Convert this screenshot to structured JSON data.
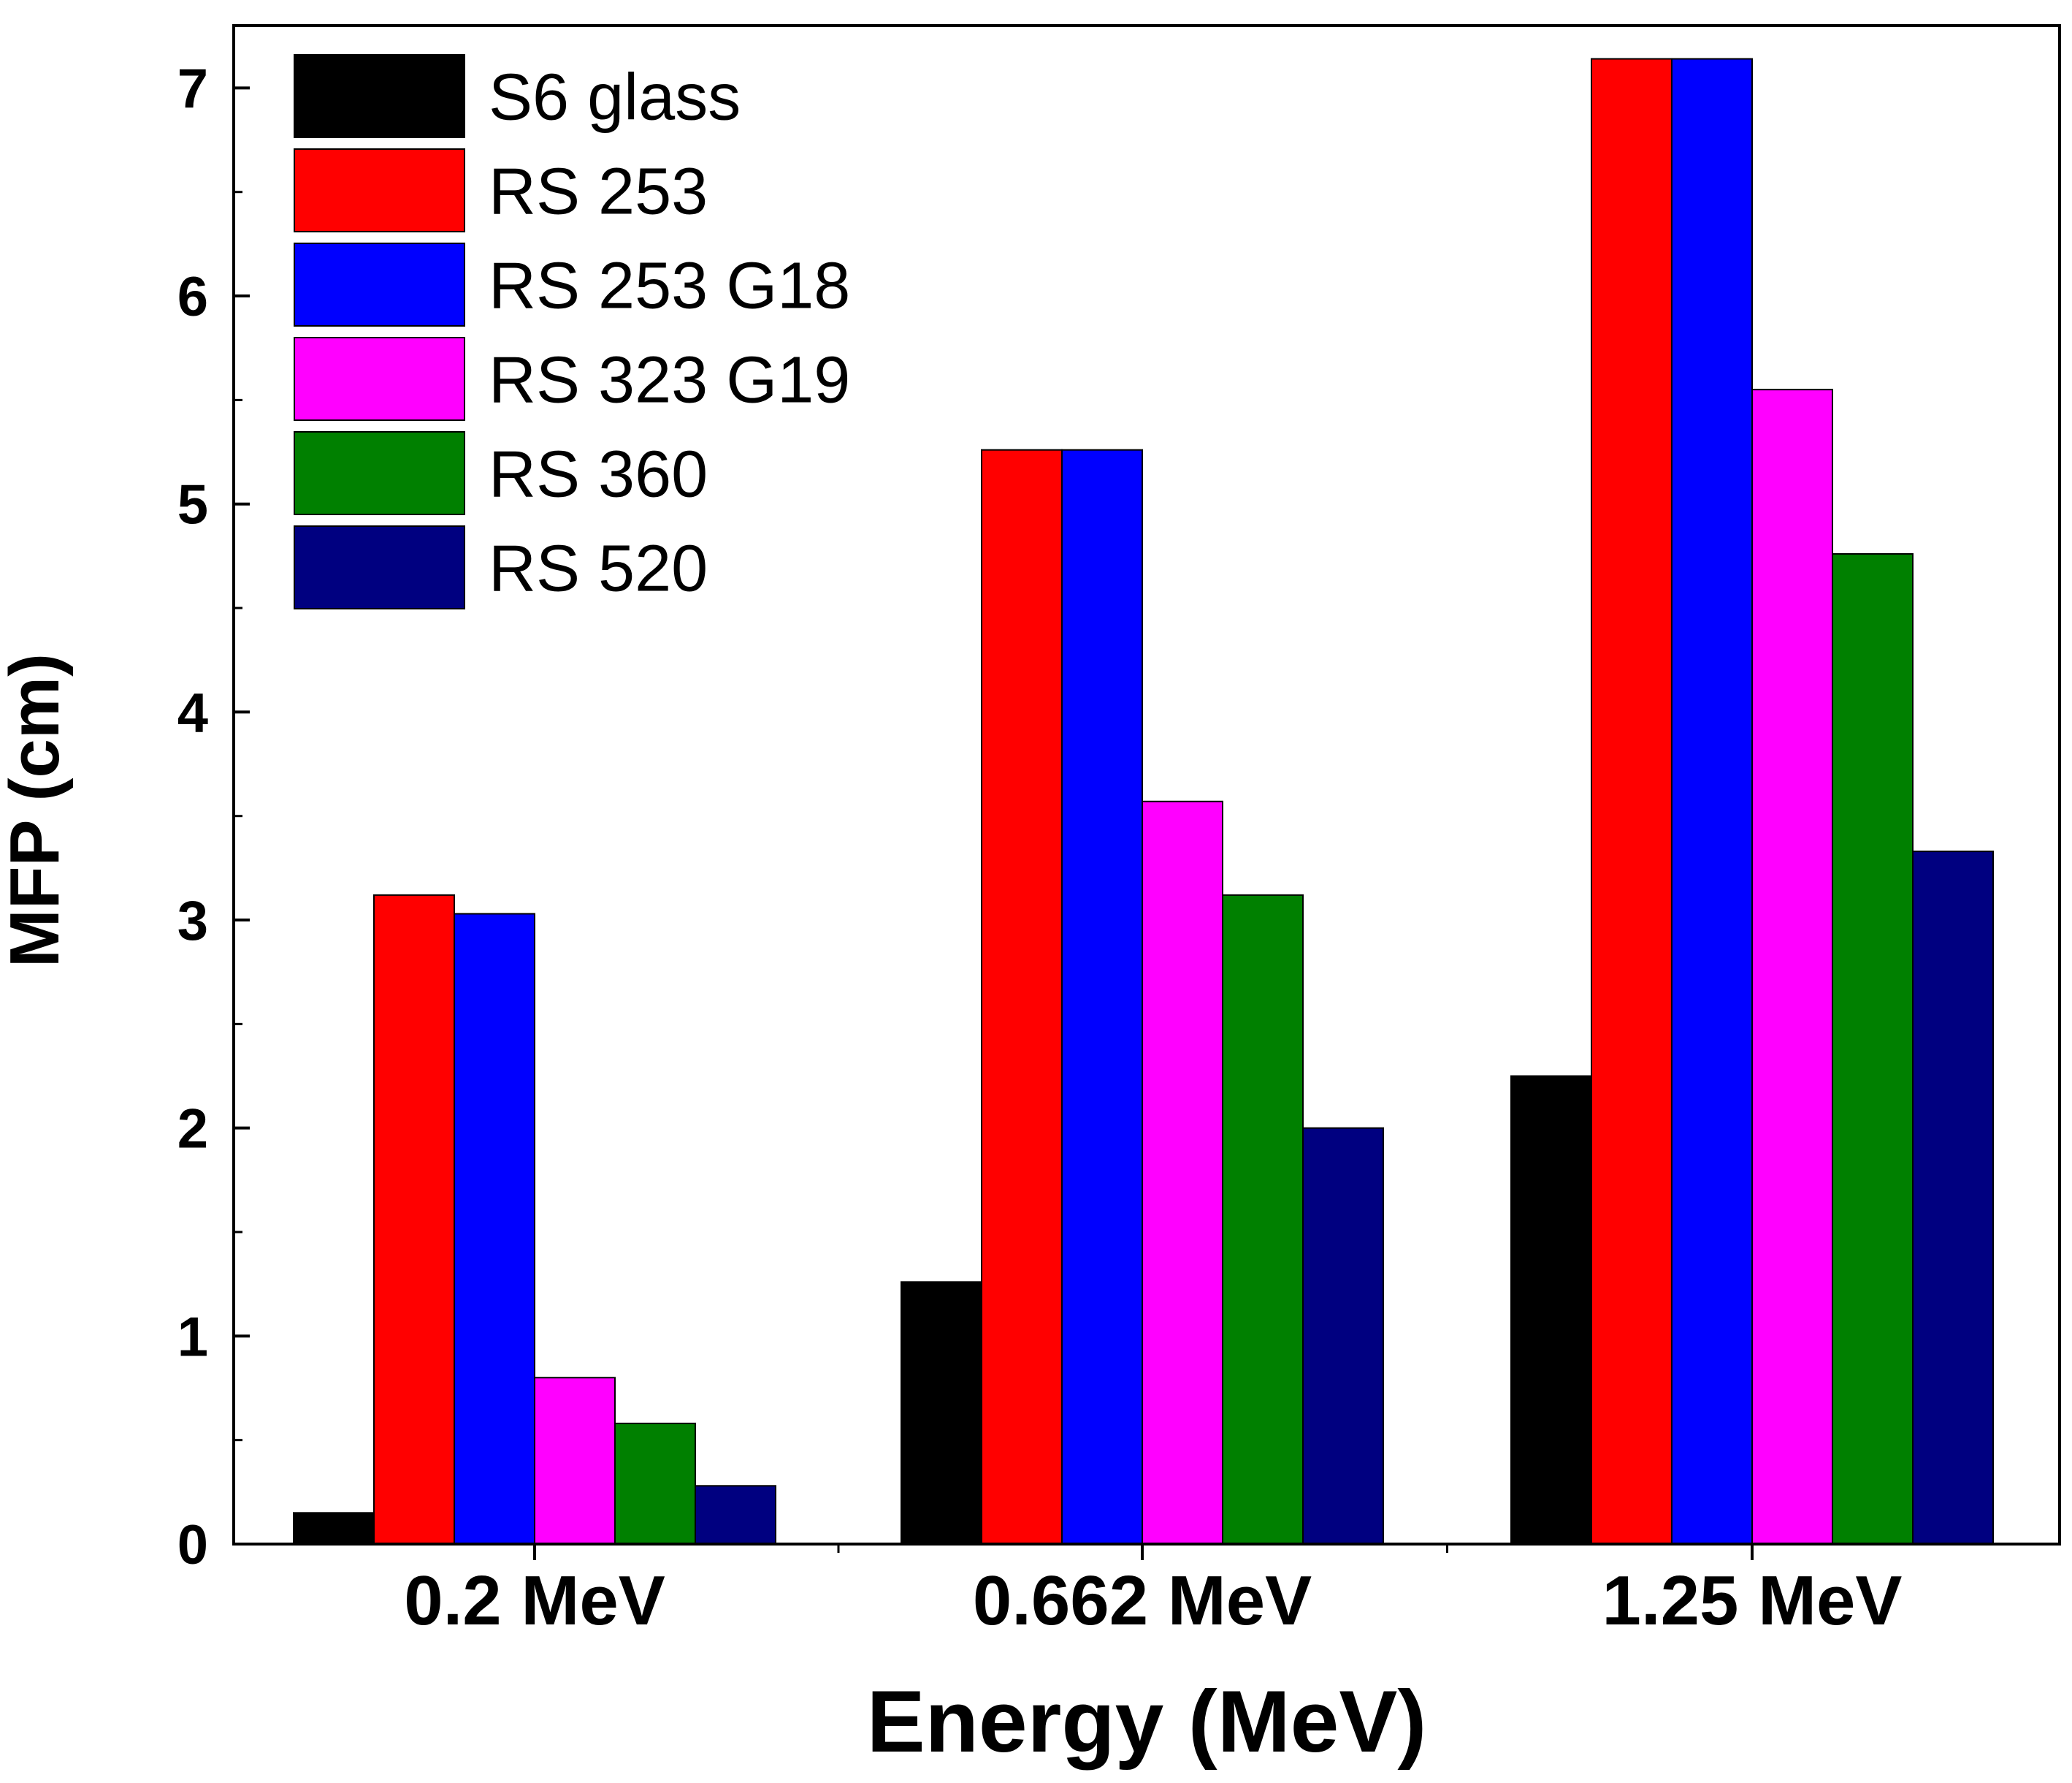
{
  "chart_data": {
    "type": "bar",
    "xlabel": "Energy (MeV)",
    "ylabel": "MFP (cm)",
    "ylim": [
      0,
      7.3
    ],
    "yticks": [
      0,
      1,
      2,
      3,
      4,
      5,
      6,
      7
    ],
    "categories": [
      "0.2 MeV",
      "0.662 MeV",
      "1.25 MeV"
    ],
    "series": [
      {
        "name": "S6 glass",
        "color": "#000000",
        "values": [
          0.15,
          1.26,
          2.25
        ]
      },
      {
        "name": "RS 253",
        "color": "#ff0000",
        "values": [
          3.12,
          5.26,
          7.14
        ]
      },
      {
        "name": "RS 253 G18",
        "color": "#0000ff",
        "values": [
          3.03,
          5.26,
          7.14
        ]
      },
      {
        "name": "RS 323 G19",
        "color": "#ff00ff",
        "values": [
          0.8,
          3.57,
          5.55
        ]
      },
      {
        "name": "RS 360",
        "color": "#008000",
        "values": [
          0.58,
          3.12,
          4.76
        ]
      },
      {
        "name": "RS 520",
        "color": "#000080",
        "values": [
          0.28,
          2.0,
          3.33
        ]
      }
    ],
    "grid": false,
    "legend_position": "top-left"
  }
}
